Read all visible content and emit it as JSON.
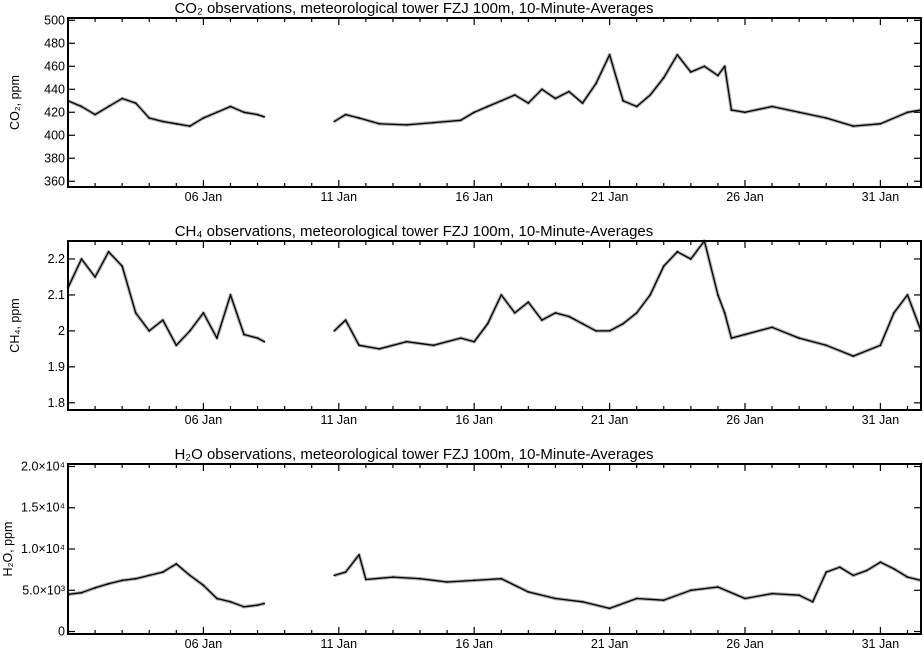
{
  "chart_data": [
    {
      "type": "line",
      "title": "CO₂ observations, meteorological tower FZJ 100m, 10-Minute-Averages",
      "ylabel": "CO₂, ppm",
      "xlabel": "",
      "x_tick_labels": [
        "06 Jan",
        "11 Jan",
        "16 Jan",
        "21 Jan",
        "26 Jan",
        "31 Jan"
      ],
      "y_ticks": [
        360,
        380,
        400,
        420,
        440,
        460,
        480,
        500
      ],
      "ylim": [
        355,
        502
      ],
      "series": [
        {
          "points": [
            [
              "2015-01-01T00:00",
              430
            ],
            [
              "2015-01-01T12:00",
              425
            ],
            [
              "2015-01-02T00:00",
              418
            ],
            [
              "2015-01-02T12:00",
              425
            ],
            [
              "2015-01-03T00:00",
              432
            ],
            [
              "2015-01-03T12:00",
              428
            ],
            [
              "2015-01-04T00:00",
              415
            ],
            [
              "2015-01-04T12:00",
              412
            ],
            [
              "2015-01-05T00:00",
              410
            ],
            [
              "2015-01-05T12:00",
              408
            ],
            [
              "2015-01-06T00:00",
              415
            ],
            [
              "2015-01-06T12:00",
              420
            ],
            [
              "2015-01-07T00:00",
              425
            ],
            [
              "2015-01-07T12:00",
              420
            ],
            [
              "2015-01-08T00:00",
              418
            ],
            [
              "2015-01-08T06:00",
              416
            ],
            [
              "2015-01-10T20:00",
              412
            ],
            [
              "2015-01-11T06:00",
              418
            ],
            [
              "2015-01-11T18:00",
              415
            ],
            [
              "2015-01-12T12:00",
              410
            ],
            [
              "2015-01-13T12:00",
              409
            ],
            [
              "2015-01-14T12:00",
              411
            ],
            [
              "2015-01-15T12:00",
              413
            ],
            [
              "2015-01-16T00:00",
              420
            ],
            [
              "2015-01-16T12:00",
              425
            ],
            [
              "2015-01-17T00:00",
              430
            ],
            [
              "2015-01-17T12:00",
              435
            ],
            [
              "2015-01-18T00:00",
              428
            ],
            [
              "2015-01-18T12:00",
              440
            ],
            [
              "2015-01-19T00:00",
              432
            ],
            [
              "2015-01-19T12:00",
              438
            ],
            [
              "2015-01-20T00:00",
              428
            ],
            [
              "2015-01-20T12:00",
              445
            ],
            [
              "2015-01-21T00:00",
              470
            ],
            [
              "2015-01-21T12:00",
              430
            ],
            [
              "2015-01-22T00:00",
              425
            ],
            [
              "2015-01-22T12:00",
              435
            ],
            [
              "2015-01-23T00:00",
              450
            ],
            [
              "2015-01-23T12:00",
              470
            ],
            [
              "2015-01-24T00:00",
              455
            ],
            [
              "2015-01-24T12:00",
              460
            ],
            [
              "2015-01-25T00:00",
              452
            ],
            [
              "2015-01-25T06:00",
              460
            ],
            [
              "2015-01-25T12:00",
              422
            ],
            [
              "2015-01-26T00:00",
              420
            ],
            [
              "2015-01-27T00:00",
              425
            ],
            [
              "2015-01-28T00:00",
              420
            ],
            [
              "2015-01-29T00:00",
              415
            ],
            [
              "2015-01-30T00:00",
              408
            ],
            [
              "2015-01-31T00:00",
              410
            ],
            [
              "2015-02-01T00:00",
              420
            ],
            [
              "2015-02-01T12:00",
              422
            ]
          ]
        }
      ]
    },
    {
      "type": "line",
      "title": "CH₄ observations, meteorological tower FZJ 100m, 10-Minute-Averages",
      "ylabel": "CH₄, ppm",
      "xlabel": "",
      "x_tick_labels": [
        "06 Jan",
        "11 Jan",
        "16 Jan",
        "21 Jan",
        "26 Jan",
        "31 Jan"
      ],
      "y_ticks": [
        1.8,
        1.9,
        2.0,
        2.1,
        2.2
      ],
      "ylim": [
        1.78,
        2.25
      ],
      "series": [
        {
          "points": [
            [
              "2015-01-01T00:00",
              2.12
            ],
            [
              "2015-01-01T12:00",
              2.2
            ],
            [
              "2015-01-02T00:00",
              2.15
            ],
            [
              "2015-01-02T12:00",
              2.22
            ],
            [
              "2015-01-03T00:00",
              2.18
            ],
            [
              "2015-01-03T12:00",
              2.05
            ],
            [
              "2015-01-04T00:00",
              2.0
            ],
            [
              "2015-01-04T12:00",
              2.03
            ],
            [
              "2015-01-05T00:00",
              1.96
            ],
            [
              "2015-01-05T12:00",
              2.0
            ],
            [
              "2015-01-06T00:00",
              2.05
            ],
            [
              "2015-01-06T12:00",
              1.98
            ],
            [
              "2015-01-07T00:00",
              2.1
            ],
            [
              "2015-01-07T12:00",
              1.99
            ],
            [
              "2015-01-08T00:00",
              1.98
            ],
            [
              "2015-01-08T06:00",
              1.97
            ],
            [
              "2015-01-10T20:00",
              2.0
            ],
            [
              "2015-01-11T06:00",
              2.03
            ],
            [
              "2015-01-11T18:00",
              1.96
            ],
            [
              "2015-01-12T12:00",
              1.95
            ],
            [
              "2015-01-13T12:00",
              1.97
            ],
            [
              "2015-01-14T12:00",
              1.96
            ],
            [
              "2015-01-15T12:00",
              1.98
            ],
            [
              "2015-01-16T00:00",
              1.97
            ],
            [
              "2015-01-16T12:00",
              2.02
            ],
            [
              "2015-01-17T00:00",
              2.1
            ],
            [
              "2015-01-17T12:00",
              2.05
            ],
            [
              "2015-01-18T00:00",
              2.08
            ],
            [
              "2015-01-18T12:00",
              2.03
            ],
            [
              "2015-01-19T00:00",
              2.05
            ],
            [
              "2015-01-19T12:00",
              2.04
            ],
            [
              "2015-01-20T00:00",
              2.02
            ],
            [
              "2015-01-20T12:00",
              2.0
            ],
            [
              "2015-01-21T00:00",
              2.0
            ],
            [
              "2015-01-21T12:00",
              2.02
            ],
            [
              "2015-01-22T00:00",
              2.05
            ],
            [
              "2015-01-22T12:00",
              2.1
            ],
            [
              "2015-01-23T00:00",
              2.18
            ],
            [
              "2015-01-23T12:00",
              2.22
            ],
            [
              "2015-01-24T00:00",
              2.2
            ],
            [
              "2015-01-24T12:00",
              2.25
            ],
            [
              "2015-01-25T00:00",
              2.1
            ],
            [
              "2015-01-25T06:00",
              2.05
            ],
            [
              "2015-01-25T12:00",
              1.98
            ],
            [
              "2015-01-26T00:00",
              1.99
            ],
            [
              "2015-01-27T00:00",
              2.01
            ],
            [
              "2015-01-28T00:00",
              1.98
            ],
            [
              "2015-01-29T00:00",
              1.96
            ],
            [
              "2015-01-30T00:00",
              1.93
            ],
            [
              "2015-01-31T00:00",
              1.96
            ],
            [
              "2015-01-31T12:00",
              2.05
            ],
            [
              "2015-02-01T00:00",
              2.1
            ],
            [
              "2015-02-01T12:00",
              2.0
            ]
          ]
        }
      ]
    },
    {
      "type": "line",
      "title": "H₂O observations, meteorological tower FZJ 100m, 10-Minute-Averages",
      "ylabel": "H₂O, ppm",
      "xlabel": "",
      "x_tick_labels": [
        "06 Jan",
        "11 Jan",
        "16 Jan",
        "21 Jan",
        "26 Jan",
        "31 Jan"
      ],
      "y_tick_labels": [
        "0",
        "5.0×10³",
        "1.0×10⁴",
        "1.5×10⁴",
        "2.0×10⁴"
      ],
      "y_ticks": [
        0,
        5000,
        10000,
        15000,
        20000
      ],
      "ylim": [
        -300,
        20300
      ],
      "series": [
        {
          "points": [
            [
              "2015-01-01T00:00",
              4500
            ],
            [
              "2015-01-01T12:00",
              4700
            ],
            [
              "2015-01-02T00:00",
              5300
            ],
            [
              "2015-01-02T12:00",
              5800
            ],
            [
              "2015-01-03T00:00",
              6200
            ],
            [
              "2015-01-03T12:00",
              6400
            ],
            [
              "2015-01-04T00:00",
              6800
            ],
            [
              "2015-01-04T12:00",
              7200
            ],
            [
              "2015-01-05T00:00",
              8200
            ],
            [
              "2015-01-05T12:00",
              6800
            ],
            [
              "2015-01-06T00:00",
              5600
            ],
            [
              "2015-01-06T12:00",
              4000
            ],
            [
              "2015-01-07T00:00",
              3600
            ],
            [
              "2015-01-07T12:00",
              3000
            ],
            [
              "2015-01-08T00:00",
              3200
            ],
            [
              "2015-01-08T06:00",
              3400
            ],
            [
              "2015-01-10T20:00",
              6800
            ],
            [
              "2015-01-11T06:00",
              7200
            ],
            [
              "2015-01-11T18:00",
              9300
            ],
            [
              "2015-01-12T00:00",
              6300
            ],
            [
              "2015-01-13T00:00",
              6600
            ],
            [
              "2015-01-14T00:00",
              6400
            ],
            [
              "2015-01-15T00:00",
              6000
            ],
            [
              "2015-01-16T00:00",
              6200
            ],
            [
              "2015-01-17T00:00",
              6400
            ],
            [
              "2015-01-18T00:00",
              4800
            ],
            [
              "2015-01-19T00:00",
              4000
            ],
            [
              "2015-01-20T00:00",
              3600
            ],
            [
              "2015-01-21T00:00",
              2800
            ],
            [
              "2015-01-22T00:00",
              4000
            ],
            [
              "2015-01-23T00:00",
              3800
            ],
            [
              "2015-01-24T00:00",
              5000
            ],
            [
              "2015-01-25T00:00",
              5400
            ],
            [
              "2015-01-26T00:00",
              4000
            ],
            [
              "2015-01-27T00:00",
              4600
            ],
            [
              "2015-01-28T00:00",
              4400
            ],
            [
              "2015-01-28T12:00",
              3600
            ],
            [
              "2015-01-29T00:00",
              7200
            ],
            [
              "2015-01-29T12:00",
              7800
            ],
            [
              "2015-01-30T00:00",
              6800
            ],
            [
              "2015-01-30T12:00",
              7400
            ],
            [
              "2015-01-31T00:00",
              8400
            ],
            [
              "2015-01-31T12:00",
              7600
            ],
            [
              "2015-02-01T00:00",
              6600
            ],
            [
              "2015-02-01T12:00",
              6200
            ]
          ]
        }
      ]
    }
  ]
}
